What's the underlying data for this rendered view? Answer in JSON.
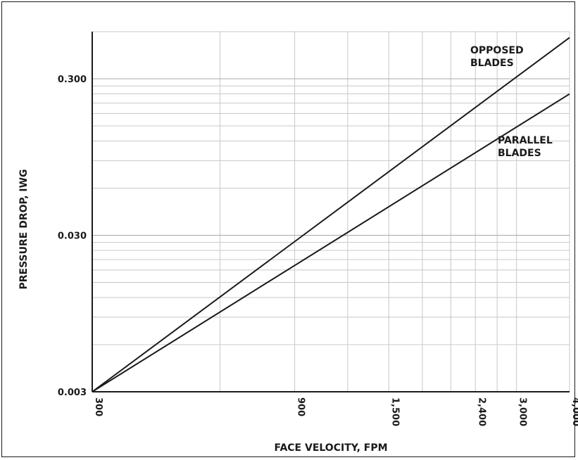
{
  "chart_data": {
    "type": "line",
    "xscale": "log",
    "yscale": "log",
    "xlim": [
      300,
      4000
    ],
    "ylim": [
      0.003,
      0.6
    ],
    "xlabel": "FACE VELOCITY, FPM",
    "ylabel": "PRESSURE DROP, IWG",
    "x_tick_labels": [
      {
        "value": 300,
        "label": "300"
      },
      {
        "value": 900,
        "label": "900"
      },
      {
        "value": 1500,
        "label": "1,500"
      },
      {
        "value": 2400,
        "label": "2,400"
      },
      {
        "value": 3000,
        "label": "3,000"
      },
      {
        "value": 4000,
        "label": "4,000"
      }
    ],
    "y_tick_labels": [
      {
        "value": 0.003,
        "label": "0.003"
      },
      {
        "value": 0.03,
        "label": "0.030"
      },
      {
        "value": 0.3,
        "label": "0.300"
      }
    ],
    "x_grid": [
      600,
      900,
      1200,
      1500,
      1800,
      2100,
      2400,
      2700,
      3000,
      4000
    ],
    "y_grid": [
      0.006,
      0.009,
      0.012,
      0.015,
      0.018,
      0.021,
      0.024,
      0.027,
      0.06,
      0.09,
      0.12,
      0.15,
      0.18,
      0.21,
      0.24,
      0.27,
      0.6
    ],
    "grid": true,
    "series": [
      {
        "name": "OPPOSED BLADES",
        "label_lines": [
          "OPPOSED",
          "BLADES"
        ],
        "x": [
          300,
          4000
        ],
        "y": [
          0.003,
          0.55
        ]
      },
      {
        "name": "PARALLEL BLADES",
        "label_lines": [
          "PARALLEL",
          "BLADES"
        ],
        "x": [
          300,
          4000
        ],
        "y": [
          0.003,
          0.24
        ]
      }
    ]
  }
}
